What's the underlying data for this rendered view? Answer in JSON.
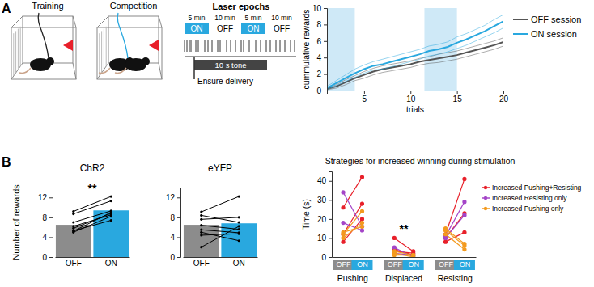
{
  "panels": [
    "A",
    "B"
  ],
  "protocol": {
    "scenes": [
      "Training",
      "Competition"
    ],
    "title": "Laser epochs",
    "epochs": [
      {
        "duration": "5 min",
        "state": "ON"
      },
      {
        "duration": "10 min",
        "state": "OFF"
      },
      {
        "duration": "5 min",
        "state": "ON"
      },
      {
        "duration": "10 min",
        "state": "OFF"
      }
    ],
    "tone": "10 s tone",
    "delivery": "Ensure delivery"
  },
  "chart_data": [
    {
      "type": "line",
      "x_label": "trials",
      "y_label": "cummulative rewards",
      "x": [
        1,
        2,
        3,
        4,
        5,
        6,
        7,
        8,
        9,
        10,
        11,
        12,
        13,
        14,
        15,
        16,
        17,
        18,
        19,
        20
      ],
      "xlim": [
        1,
        20
      ],
      "xticks": [
        5,
        10,
        15,
        20
      ],
      "ylim": [
        0,
        10
      ],
      "yticks": [
        0,
        2,
        4,
        6,
        8,
        10
      ],
      "highlight_ranges": [
        [
          1,
          4
        ],
        [
          11.5,
          15
        ]
      ],
      "legend": "right",
      "series": [
        {
          "name": "OFF session",
          "color": "#555555",
          "values": [
            0.2,
            0.5,
            1.0,
            1.5,
            1.9,
            2.3,
            2.6,
            2.8,
            3.0,
            3.2,
            3.5,
            3.7,
            3.9,
            4.1,
            4.3,
            4.6,
            4.9,
            5.2,
            5.5,
            5.9
          ],
          "errors": [
            0.1,
            0.2,
            0.3,
            0.3,
            0.4,
            0.4,
            0.4,
            0.4,
            0.4,
            0.4,
            0.4,
            0.4,
            0.5,
            0.5,
            0.5,
            0.5,
            0.5,
            0.5,
            0.5,
            0.5
          ]
        },
        {
          "name": "ON session",
          "color": "#29a8df",
          "values": [
            0.3,
            0.9,
            1.5,
            2.1,
            2.6,
            3.0,
            3.2,
            3.5,
            3.8,
            4.1,
            4.4,
            4.8,
            5.0,
            5.3,
            5.8,
            6.2,
            6.7,
            7.2,
            7.8,
            8.4
          ],
          "errors": [
            0.2,
            0.3,
            0.4,
            0.5,
            0.5,
            0.5,
            0.6,
            0.6,
            0.6,
            0.6,
            0.6,
            0.6,
            0.6,
            0.6,
            0.7,
            0.7,
            0.7,
            0.7,
            0.8,
            0.8
          ]
        }
      ]
    },
    {
      "type": "bar",
      "title": "ChR2",
      "y_label": "Number of rewards",
      "annotation": "**",
      "categories": [
        "OFF",
        "ON"
      ],
      "values": [
        6.5,
        9.4
      ],
      "colors": [
        "#8c8c8c",
        "#29a8df"
      ],
      "individual": [
        [
          9.2,
          8.7,
          7.0,
          6.2,
          5.8,
          5.3,
          5.2,
          5.0
        ],
        [
          12.2,
          11.3,
          9.3,
          8.5,
          8.8,
          7.4,
          9.0,
          8.2
        ]
      ],
      "ylim": [
        0,
        14
      ],
      "yticks": [
        0,
        4,
        8,
        12
      ]
    },
    {
      "type": "bar",
      "title": "eYFP",
      "categories": [
        "OFF",
        "ON"
      ],
      "values": [
        6.5,
        6.8
      ],
      "colors": [
        "#8c8c8c",
        "#29a8df"
      ],
      "individual": [
        [
          9.1,
          8.4,
          7.6,
          6.4,
          5.5,
          5.0,
          4.4,
          2.0
        ],
        [
          12.2,
          7.0,
          8.0,
          5.6,
          4.9,
          3.3,
          4.7,
          6.2
        ]
      ],
      "ylim": [
        0,
        14
      ],
      "yticks": [
        0,
        4,
        8,
        12
      ]
    },
    {
      "type": "line",
      "title": "Strategies for increased winning during stimulation",
      "y_label": "Time (s)",
      "categories": [
        "OFF",
        "ON",
        "OFF",
        "ON",
        "OFF",
        "ON"
      ],
      "groups": [
        "Pushing",
        "Displaced",
        "Resisting"
      ],
      "annotation": {
        "text": "**",
        "group": "Displaced"
      },
      "ylim": [
        0,
        45
      ],
      "yticks": [
        0,
        10,
        20,
        30,
        40
      ],
      "legend": "right",
      "marker": "circle",
      "series": [
        {
          "name": "Increased Pushing+Resisting",
          "color": "#e8202a",
          "values": [
            [
              26,
              42,
              10,
              3,
              12,
              41
            ],
            [
              12,
              28,
              4,
              1,
              10,
              23
            ],
            [
              8,
              20,
              3,
              2,
              8,
              13
            ]
          ]
        },
        {
          "name": "Increased Resisting only",
          "color": "#a445c8",
          "values": [
            [
              34,
              16,
              2,
              1,
              11,
              29
            ],
            [
              18,
              14,
              5,
              0,
              10,
              22
            ]
          ]
        },
        {
          "name": "Increased Pushing only",
          "color": "#f39a1e",
          "values": [
            [
              12,
              24,
              2,
              0,
              15,
              7
            ],
            [
              10,
              18,
              3,
              1,
              14,
              6
            ],
            [
              13,
              16,
              1,
              1,
              12,
              4
            ]
          ]
        }
      ]
    }
  ]
}
